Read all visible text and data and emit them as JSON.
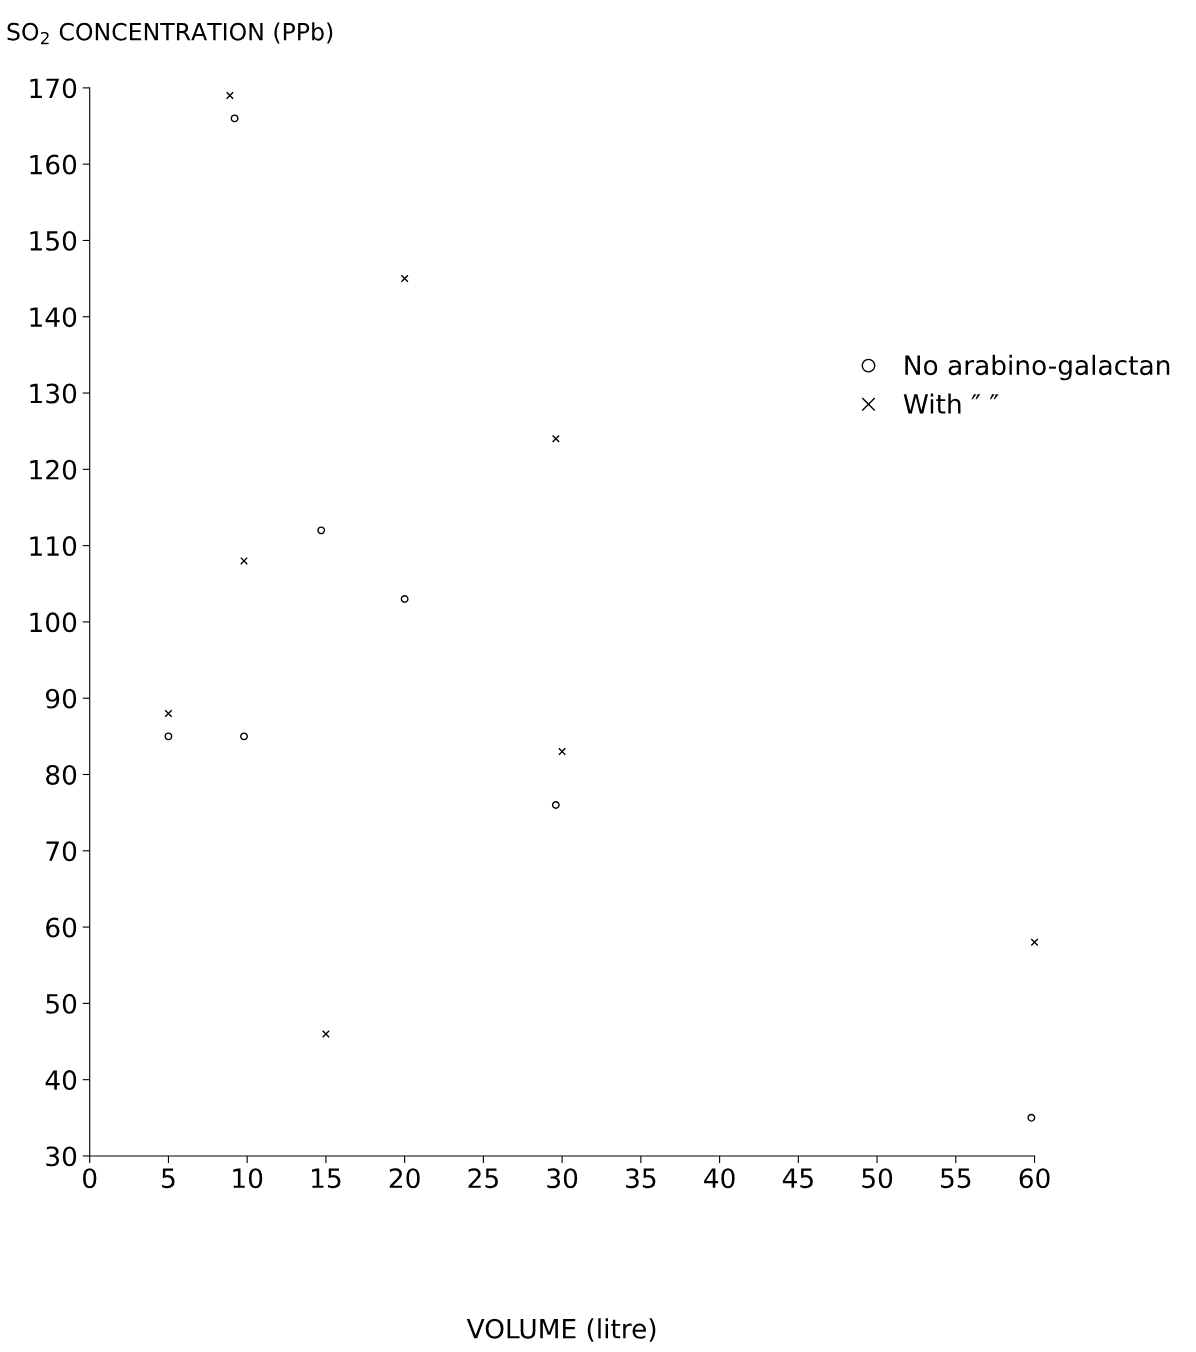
{
  "chart_data": {
    "type": "scatter",
    "ylabel": "SO$_{2}$ CONCENTRATION (PPb)",
    "xlabel": "VOLUME (litre)",
    "xlim": [
      0,
      60
    ],
    "xticks": [
      0,
      5,
      10,
      15,
      20,
      25,
      30,
      35,
      40,
      45,
      50,
      55,
      60
    ],
    "ylim": [
      30,
      170
    ],
    "yticks": [
      30,
      40,
      50,
      60,
      70,
      80,
      90,
      100,
      110,
      120,
      130,
      140,
      150,
      160,
      170
    ],
    "grid": false,
    "legend": "right",
    "series": [
      {
        "name": "No arabino-galactan",
        "color": "#000000",
        "marker": "circle",
        "x": [
          5,
          9.2,
          9.8,
          14.7,
          20,
          29.6,
          59.8
        ],
        "values": [
          85,
          166,
          85,
          112,
          103,
          76,
          35
        ]
      },
      {
        "name": "With ″ ″",
        "color": "#000000",
        "marker": "cross",
        "x": [
          5,
          8.9,
          9.8,
          15,
          20,
          29.6,
          30,
          60
        ],
        "values": [
          88,
          169,
          108,
          46,
          145,
          124,
          83,
          58
        ]
      }
    ]
  }
}
